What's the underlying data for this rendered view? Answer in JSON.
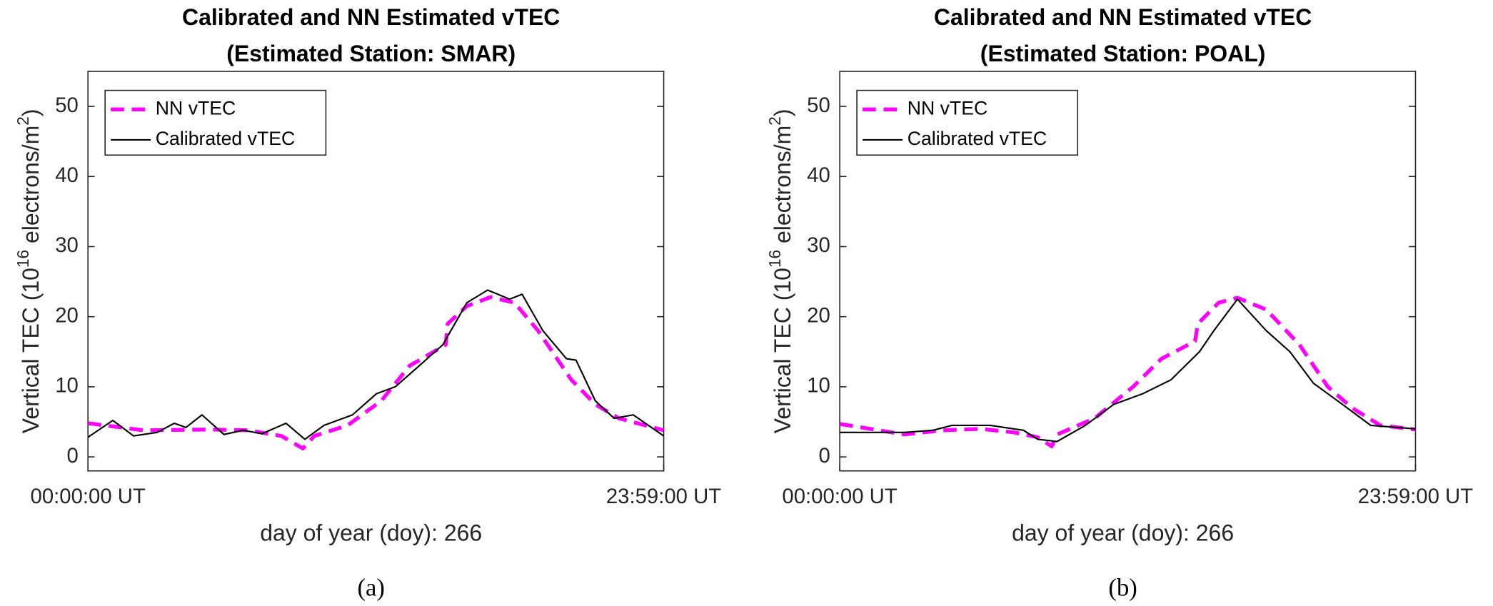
{
  "chart_data": [
    {
      "type": "line",
      "title": [
        "Calibrated and NN Estimated vTEC",
        "(Estimated Station: SMAR)"
      ],
      "xlabel": "day of year (doy): 266",
      "ylabel": [
        "Vertical TEC (10",
        "16",
        " electrons/m",
        "2",
        ")"
      ],
      "caption": "(a)",
      "xlim": [
        0,
        1439
      ],
      "xticks": [
        {
          "value": 0,
          "label": "00:00:00 UT"
        },
        {
          "value": 1439,
          "label": "23:59:00 UT"
        }
      ],
      "ylim": [
        -2,
        55
      ],
      "yticks": [
        0,
        10,
        20,
        30,
        40,
        50
      ],
      "legend": "northwest",
      "series": [
        {
          "name": "NN vTEC",
          "color": "#ff00ff",
          "dashed": true,
          "x": [
            0,
            138,
            304,
            400,
            483,
            537,
            566,
            649,
            733,
            804,
            894,
            899,
            947,
            1006,
            1066,
            1125,
            1208,
            1268,
            1327,
            1439
          ],
          "values": [
            4.8,
            3.8,
            3.9,
            3.8,
            3.0,
            1.2,
            3.0,
            4.5,
            8.0,
            13.0,
            16.0,
            19.0,
            21.5,
            22.8,
            22.0,
            18.0,
            11.0,
            7.5,
            5.5,
            3.8
          ]
        },
        {
          "name": "Calibrated vTEC",
          "color": "#000000",
          "dashed": false,
          "x": [
            0,
            62,
            114,
            173,
            216,
            245,
            285,
            340,
            388,
            435,
            495,
            542,
            590,
            661,
            721,
            768,
            828,
            887,
            947,
            999,
            1054,
            1085,
            1137,
            1196,
            1220,
            1268,
            1315,
            1363,
            1439
          ],
          "values": [
            2.8,
            5.2,
            3.0,
            3.5,
            4.8,
            4.2,
            6.0,
            3.2,
            3.8,
            3.3,
            4.8,
            2.5,
            4.5,
            6.0,
            9.0,
            10.0,
            13.0,
            16.0,
            22.0,
            23.8,
            22.5,
            23.2,
            18.0,
            14.0,
            13.8,
            8.0,
            5.5,
            6.0,
            3.0
          ]
        }
      ]
    },
    {
      "type": "line",
      "title": [
        "Calibrated and NN Estimated vTEC",
        "(Estimated Station: POAL)"
      ],
      "xlabel": "day of year (doy): 266",
      "ylabel": [
        "Vertical TEC (10",
        "16",
        " electrons/m",
        "2",
        ")"
      ],
      "caption": "(b)",
      "xlim": [
        0,
        1439
      ],
      "xticks": [
        {
          "value": 0,
          "label": "00:00:00 UT"
        },
        {
          "value": 1439,
          "label": "23:59:00 UT"
        }
      ],
      "ylim": [
        -2,
        55
      ],
      "yticks": [
        0,
        10,
        20,
        30,
        40,
        50
      ],
      "legend": "northwest",
      "series": [
        {
          "name": "NN vTEC",
          "color": "#ff00ff",
          "dashed": true,
          "x": [
            0,
            162,
            257,
            352,
            435,
            495,
            530,
            543,
            637,
            733,
            804,
            888,
            895,
            947,
            994,
            1066,
            1149,
            1220,
            1280,
            1351,
            1439
          ],
          "values": [
            4.7,
            3.2,
            3.8,
            4.0,
            3.5,
            2.8,
            1.5,
            3.2,
            5.5,
            10.0,
            14.0,
            16.5,
            19.0,
            22.0,
            22.7,
            21.0,
            16.0,
            10.0,
            7.0,
            4.5,
            3.9
          ]
        },
        {
          "name": "Calibrated vTEC",
          "color": "#000000",
          "dashed": false,
          "x": [
            0,
            162,
            233,
            281,
            376,
            459,
            495,
            543,
            614,
            685,
            757,
            828,
            899,
            935,
            994,
            1066,
            1125,
            1184,
            1256,
            1327,
            1439
          ],
          "values": [
            3.5,
            3.5,
            3.8,
            4.5,
            4.5,
            3.8,
            2.5,
            2.2,
            4.5,
            7.5,
            9.0,
            11.0,
            15.0,
            18.0,
            22.5,
            18.0,
            15.0,
            10.5,
            7.5,
            4.5,
            4.0
          ]
        }
      ]
    }
  ]
}
